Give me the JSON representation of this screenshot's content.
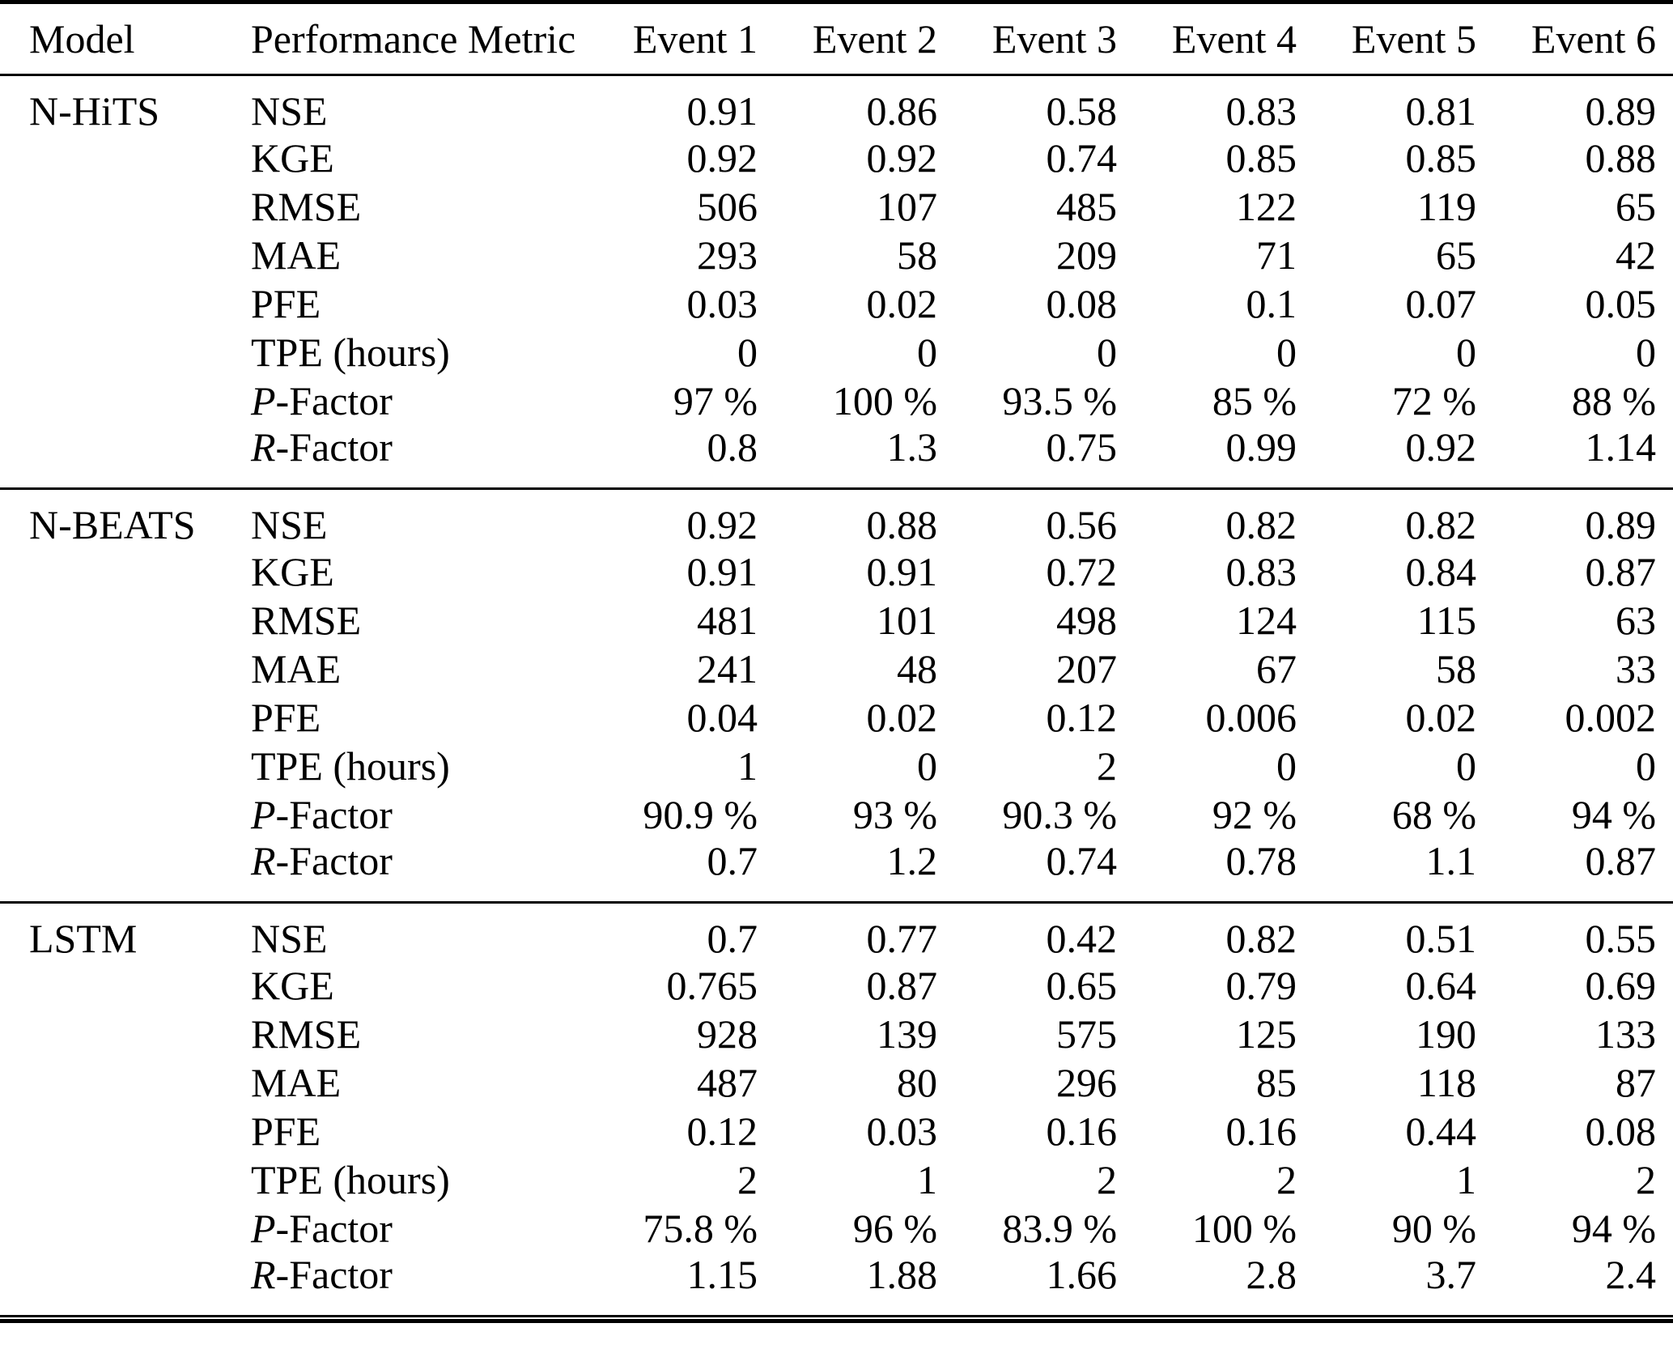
{
  "colors": {
    "text": "#000000",
    "background": "#ffffff",
    "rule": "#000000"
  },
  "table": {
    "columns": [
      "Model",
      "Performance Metric",
      "Event 1",
      "Event 2",
      "Event 3",
      "Event 4",
      "Event 5",
      "Event 6"
    ],
    "groups": [
      {
        "model": "N-HiTS",
        "rows": [
          {
            "metric": [
              {
                "t": "NSE",
                "i": false
              }
            ],
            "values": [
              "0.91",
              "0.86",
              "0.58",
              "0.83",
              "0.81",
              "0.89"
            ]
          },
          {
            "metric": [
              {
                "t": "KGE",
                "i": false
              }
            ],
            "values": [
              "0.92",
              "0.92",
              "0.74",
              "0.85",
              "0.85",
              "0.88"
            ]
          },
          {
            "metric": [
              {
                "t": "RMSE",
                "i": false
              }
            ],
            "values": [
              "506",
              "107",
              "485",
              "122",
              "119",
              "65"
            ]
          },
          {
            "metric": [
              {
                "t": "MAE",
                "i": false
              }
            ],
            "values": [
              "293",
              "58",
              "209",
              "71",
              "65",
              "42"
            ]
          },
          {
            "metric": [
              {
                "t": "PFE",
                "i": false
              }
            ],
            "values": [
              "0.03",
              "0.02",
              "0.08",
              "0.1",
              "0.07",
              "0.05"
            ]
          },
          {
            "metric": [
              {
                "t": "TPE (hours)",
                "i": false
              }
            ],
            "values": [
              "0",
              "0",
              "0",
              "0",
              "0",
              "0"
            ]
          },
          {
            "metric": [
              {
                "t": "P",
                "i": true
              },
              {
                "t": "-Factor",
                "i": false
              }
            ],
            "values": [
              "97 %",
              "100 %",
              "93.5 %",
              "85 %",
              "72 %",
              "88 %"
            ]
          },
          {
            "metric": [
              {
                "t": "R",
                "i": true
              },
              {
                "t": "-Factor",
                "i": false
              }
            ],
            "values": [
              "0.8",
              "1.3",
              "0.75",
              "0.99",
              "0.92",
              "1.14"
            ]
          }
        ]
      },
      {
        "model": "N-BEATS",
        "rows": [
          {
            "metric": [
              {
                "t": "NSE",
                "i": false
              }
            ],
            "values": [
              "0.92",
              "0.88",
              "0.56",
              "0.82",
              "0.82",
              "0.89"
            ]
          },
          {
            "metric": [
              {
                "t": "KGE",
                "i": false
              }
            ],
            "values": [
              "0.91",
              "0.91",
              "0.72",
              "0.83",
              "0.84",
              "0.87"
            ]
          },
          {
            "metric": [
              {
                "t": "RMSE",
                "i": false
              }
            ],
            "values": [
              "481",
              "101",
              "498",
              "124",
              "115",
              "63"
            ]
          },
          {
            "metric": [
              {
                "t": "MAE",
                "i": false
              }
            ],
            "values": [
              "241",
              "48",
              "207",
              "67",
              "58",
              "33"
            ]
          },
          {
            "metric": [
              {
                "t": "PFE",
                "i": false
              }
            ],
            "values": [
              "0.04",
              "0.02",
              "0.12",
              "0.006",
              "0.02",
              "0.002"
            ]
          },
          {
            "metric": [
              {
                "t": "TPE (hours)",
                "i": false
              }
            ],
            "values": [
              "1",
              "0",
              "2",
              "0",
              "0",
              "0"
            ]
          },
          {
            "metric": [
              {
                "t": "P",
                "i": true
              },
              {
                "t": "-Factor",
                "i": false
              }
            ],
            "values": [
              "90.9 %",
              "93 %",
              "90.3 %",
              "92 %",
              "68 %",
              "94 %"
            ]
          },
          {
            "metric": [
              {
                "t": "R",
                "i": true
              },
              {
                "t": "-Factor",
                "i": false
              }
            ],
            "values": [
              "0.7",
              "1.2",
              "0.74",
              "0.78",
              "1.1",
              "0.87"
            ]
          }
        ]
      },
      {
        "model": "LSTM",
        "rows": [
          {
            "metric": [
              {
                "t": "NSE",
                "i": false
              }
            ],
            "values": [
              "0.7",
              "0.77",
              "0.42",
              "0.82",
              "0.51",
              "0.55"
            ]
          },
          {
            "metric": [
              {
                "t": "KGE",
                "i": false
              }
            ],
            "values": [
              "0.765",
              "0.87",
              "0.65",
              "0.79",
              "0.64",
              "0.69"
            ]
          },
          {
            "metric": [
              {
                "t": "RMSE",
                "i": false
              }
            ],
            "values": [
              "928",
              "139",
              "575",
              "125",
              "190",
              "133"
            ]
          },
          {
            "metric": [
              {
                "t": "MAE",
                "i": false
              }
            ],
            "values": [
              "487",
              "80",
              "296",
              "85",
              "118",
              "87"
            ]
          },
          {
            "metric": [
              {
                "t": "PFE",
                "i": false
              }
            ],
            "values": [
              "0.12",
              "0.03",
              "0.16",
              "0.16",
              "0.44",
              "0.08"
            ]
          },
          {
            "metric": [
              {
                "t": "TPE (hours)",
                "i": false
              }
            ],
            "values": [
              "2",
              "1",
              "2",
              "2",
              "1",
              "2"
            ]
          },
          {
            "metric": [
              {
                "t": "P",
                "i": true
              },
              {
                "t": "-Factor",
                "i": false
              }
            ],
            "values": [
              "75.8 %",
              "96 %",
              "83.9 %",
              "100 %",
              "90 %",
              "94 %"
            ]
          },
          {
            "metric": [
              {
                "t": "R",
                "i": true
              },
              {
                "t": "-Factor",
                "i": false
              }
            ],
            "values": [
              "1.15",
              "1.88",
              "1.66",
              "2.8",
              "3.7",
              "2.4"
            ]
          }
        ]
      }
    ]
  }
}
